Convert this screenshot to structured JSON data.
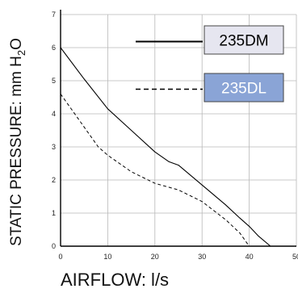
{
  "chart_data": {
    "type": "line",
    "xlabel": "AIRFLOW: l/s",
    "ylabel_parts": {
      "main": "STATIC PRESSURE: mm H",
      "sub": "2",
      "end": "O"
    },
    "xlim": [
      0,
      50
    ],
    "ylim": [
      0,
      7
    ],
    "xticks": [
      0,
      10,
      20,
      30,
      40,
      50
    ],
    "yticks": [
      0,
      1,
      2,
      3,
      4,
      5,
      6,
      7
    ],
    "grid": true,
    "legend_position": "top-right",
    "series": [
      {
        "name": "235DM",
        "style": "solid",
        "legend_bg": "#e6e6f0",
        "legend_text_color": "#000000",
        "x": [
          0,
          5,
          10,
          15,
          20,
          23,
          25,
          30,
          35,
          38,
          40,
          42,
          44.5
        ],
        "y": [
          6.0,
          5.05,
          4.15,
          3.5,
          2.85,
          2.55,
          2.45,
          1.85,
          1.25,
          0.85,
          0.6,
          0.3,
          0.0
        ]
      },
      {
        "name": "235DL",
        "style": "dashed",
        "legend_bg": "#8aa4d6",
        "legend_text_color": "#ffffff",
        "x": [
          0,
          5,
          8,
          10,
          15,
          20,
          25,
          30,
          35,
          38,
          40
        ],
        "y": [
          4.6,
          3.6,
          3.0,
          2.75,
          2.25,
          1.9,
          1.7,
          1.35,
          0.8,
          0.4,
          0.0
        ]
      }
    ]
  }
}
